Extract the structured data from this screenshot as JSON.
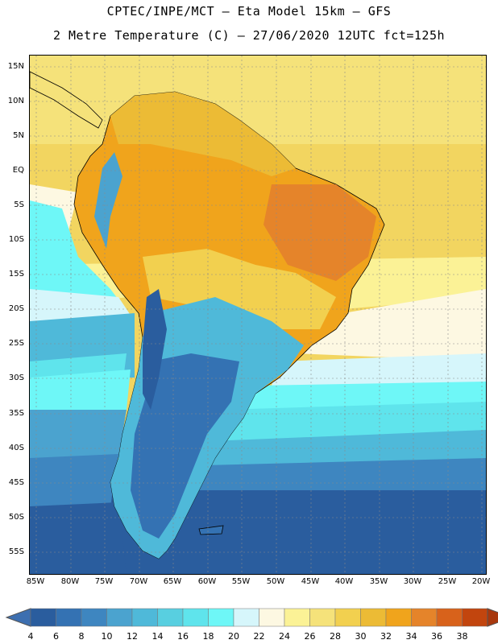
{
  "title": {
    "line1": "CPTEC/INPE/MCT –  Eta Model 15km – GFS",
    "line2": "2 Metre Temperature (C) – 27/06/2020 12UTC fct=125h"
  },
  "map": {
    "lat_labels": [
      "15N",
      "10N",
      "5N",
      "EQ",
      "5S",
      "10S",
      "15S",
      "20S",
      "25S",
      "30S",
      "35S",
      "40S",
      "45S",
      "50S",
      "55S"
    ],
    "lon_labels": [
      "85W",
      "80W",
      "75W",
      "70W",
      "65W",
      "60W",
      "55W",
      "50W",
      "45W",
      "40W",
      "35W",
      "30W",
      "25W",
      "20W"
    ]
  },
  "colorbar": {
    "levels": [
      "4",
      "6",
      "8",
      "10",
      "12",
      "14",
      "16",
      "18",
      "20",
      "22",
      "24",
      "26",
      "28",
      "30",
      "32",
      "34",
      "36",
      "38"
    ],
    "colors": [
      "#2a5d9e",
      "#3472b3",
      "#3e86c0",
      "#4ba3cf",
      "#4fb9d9",
      "#58cfe0",
      "#5fe4ec",
      "#6ef7f7",
      "#d6f6fb",
      "#fdf8e2",
      "#fbf296",
      "#f5e27a",
      "#f2d04f",
      "#ecbb35",
      "#f0a41c",
      "#e5842a",
      "#d8621b",
      "#c2450e",
      "#a8380e"
    ],
    "low_color": "#3d6fb0",
    "high_color": "#a8380e"
  }
}
